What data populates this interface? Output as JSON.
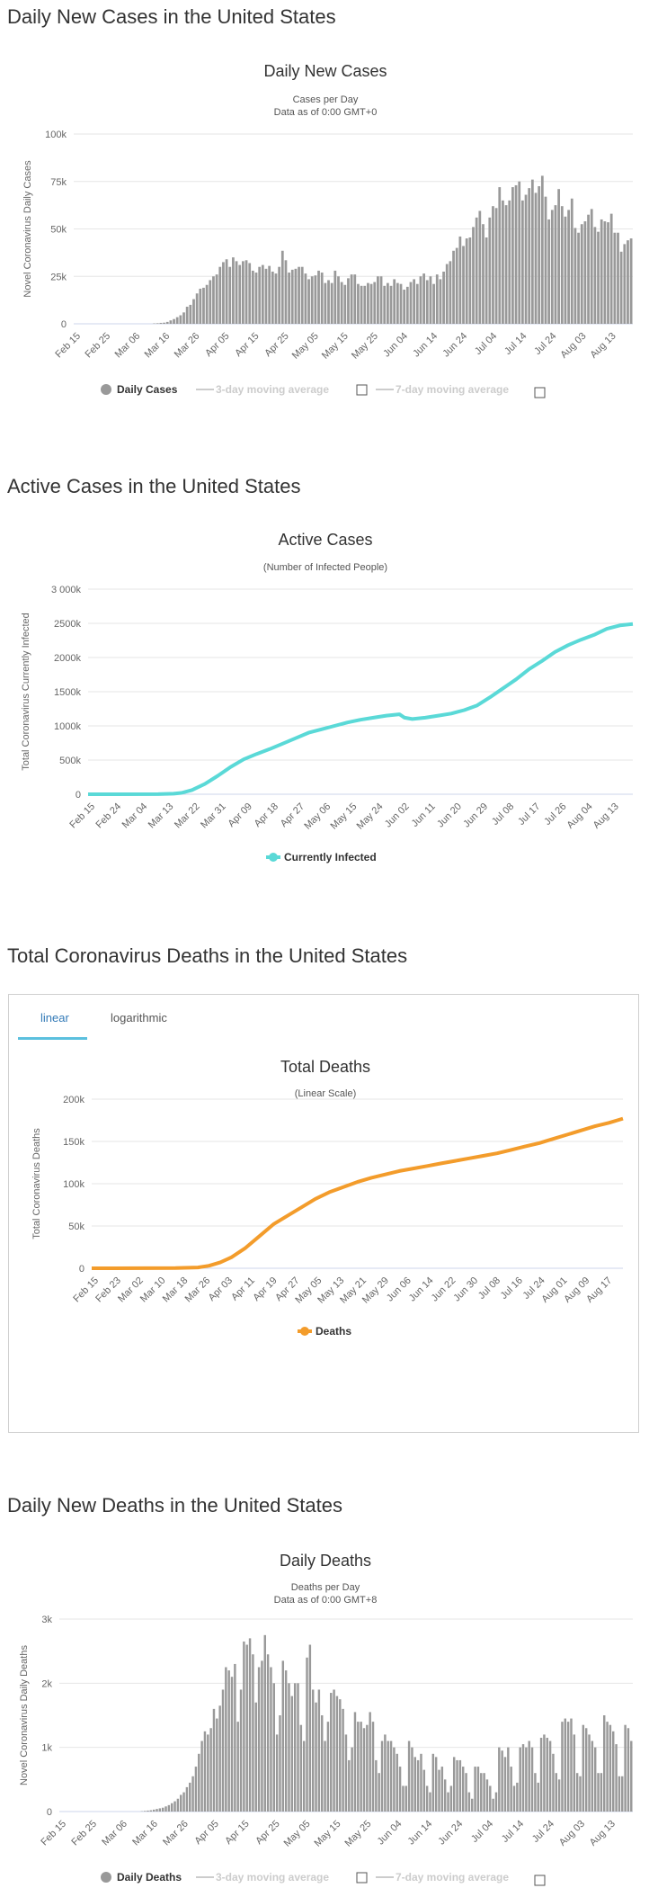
{
  "sections": {
    "daily_cases_title": "Daily New Cases in the United States",
    "active_title": "Active Cases in the United States",
    "deaths_title": "Total Coronavirus Deaths in the United States",
    "daily_deaths_title": "Daily New Deaths in the United States"
  },
  "tabs": {
    "linear": "linear",
    "log": "logarithmic"
  },
  "legends": {
    "daily_cases": "Daily Cases",
    "ma3": "3-day moving average",
    "ma7": "7-day moving average",
    "active": "Currently Infected",
    "deaths": "Deaths",
    "daily_deaths": "Daily Deaths"
  },
  "colors": {
    "bar": "#999999",
    "active": "#5ad9d7",
    "deaths": "#f39c2b",
    "tab_active": "#337ab7",
    "tab_underline": "#5bc0de"
  },
  "chart_data": [
    {
      "type": "bar",
      "title": "Daily New Cases",
      "subtitle": [
        "Cases per Day",
        "Data as of 0:00 GMT+0"
      ],
      "ylabel": "Novel Coronavirus Daily Cases",
      "ylim": [
        0,
        100000
      ],
      "yticks": [
        0,
        25000,
        50000,
        75000,
        100000
      ],
      "ytick_labels": [
        "0",
        "25k",
        "50k",
        "75k",
        "100k"
      ],
      "xtick_labels": [
        "Feb 15",
        "Feb 25",
        "Mar 06",
        "Mar 16",
        "Mar 26",
        "Apr 05",
        "Apr 15",
        "Apr 25",
        "May 05",
        "May 15",
        "May 25",
        "Jun 04",
        "Jun 14",
        "Jun 24",
        "Jul 04",
        "Jul 14",
        "Jul 24",
        "Aug 03",
        "Aug 13"
      ],
      "x_start": "2020-02-15",
      "values": [
        0,
        0,
        0,
        0,
        0,
        0,
        0,
        0,
        0,
        0,
        0,
        0,
        0,
        0,
        0,
        0,
        0,
        0,
        0,
        0,
        0,
        0,
        0,
        0,
        200,
        300,
        500,
        600,
        1000,
        1800,
        2500,
        3500,
        4500,
        6000,
        9000,
        10000,
        13000,
        16000,
        18500,
        19000,
        20500,
        23000,
        25000,
        26000,
        30000,
        32500,
        34000,
        30000,
        35000,
        33000,
        31000,
        33000,
        33500,
        32000,
        28000,
        27000,
        30000,
        31000,
        29000,
        30500,
        27500,
        26500,
        30000,
        38500,
        33500,
        27000,
        28500,
        29000,
        30000,
        30000,
        26500,
        23500,
        25000,
        25500,
        28000,
        27000,
        21500,
        23000,
        21500,
        28000,
        25000,
        22000,
        20500,
        24000,
        26000,
        26000,
        21000,
        20000,
        20000,
        21500,
        21000,
        22000,
        25000,
        25000,
        20000,
        21500,
        20000,
        23500,
        21500,
        21000,
        18000,
        19500,
        22000,
        23500,
        21000,
        25000,
        26500,
        23000,
        25000,
        21000,
        26000,
        23500,
        27500,
        31500,
        33000,
        38500,
        40000,
        46000,
        41000,
        45000,
        45500,
        51000,
        56000,
        59500,
        52500,
        45500,
        56000,
        62000,
        61000,
        72000,
        65000,
        62500,
        65000,
        72000,
        73000,
        75000,
        65000,
        68000,
        71500,
        76000,
        69000,
        72500,
        78000,
        67000,
        55000,
        60000,
        62500,
        71000,
        62000,
        56500,
        60000,
        66000,
        50500,
        48000,
        52500,
        54000,
        57500,
        60500,
        51000,
        48500,
        55000,
        54000,
        53500,
        58000,
        48000,
        48000,
        38000,
        42000,
        44000,
        45000
      ]
    },
    {
      "type": "line",
      "title": "Active Cases",
      "subtitle": [
        "(Number of Infected People)"
      ],
      "ylabel": "Total Coronavirus Currently Infected",
      "ylim": [
        0,
        3000000
      ],
      "yticks": [
        0,
        500000,
        1000000,
        1500000,
        2000000,
        2500000,
        3000000
      ],
      "ytick_labels": [
        "0",
        "500k",
        "1000k",
        "1500k",
        "2000k",
        "2500k",
        "3 000k"
      ],
      "xtick_labels": [
        "Feb 15",
        "Feb 24",
        "Mar 04",
        "Mar 13",
        "Mar 22",
        "Mar 31",
        "Apr 09",
        "Apr 18",
        "Apr 27",
        "May 06",
        "May 15",
        "May 24",
        "Jun 02",
        "Jun 11",
        "Jun 20",
        "Jun 29",
        "Jul 08",
        "Jul 17",
        "Jul 26",
        "Aug 04",
        "Aug 13"
      ],
      "x_start": "2020-02-15",
      "series": [
        {
          "name": "Currently Infected",
          "points": [
            [
              0,
              0
            ],
            [
              27,
              1000
            ],
            [
              33,
              8000
            ],
            [
              36,
              20000
            ],
            [
              40,
              60000
            ],
            [
              45,
              150000
            ],
            [
              50,
              270000
            ],
            [
              55,
              400000
            ],
            [
              60,
              510000
            ],
            [
              65,
              590000
            ],
            [
              70,
              660000
            ],
            [
              75,
              740000
            ],
            [
              80,
              820000
            ],
            [
              85,
              900000
            ],
            [
              90,
              950000
            ],
            [
              95,
              1000000
            ],
            [
              100,
              1050000
            ],
            [
              105,
              1090000
            ],
            [
              110,
              1120000
            ],
            [
              115,
              1150000
            ],
            [
              120,
              1170000
            ],
            [
              122,
              1120000
            ],
            [
              125,
              1100000
            ],
            [
              130,
              1120000
            ],
            [
              135,
              1150000
            ],
            [
              140,
              1180000
            ],
            [
              145,
              1230000
            ],
            [
              150,
              1300000
            ],
            [
              155,
              1420000
            ],
            [
              160,
              1550000
            ],
            [
              165,
              1680000
            ],
            [
              170,
              1830000
            ],
            [
              175,
              1950000
            ],
            [
              180,
              2080000
            ],
            [
              185,
              2180000
            ],
            [
              190,
              2260000
            ],
            [
              195,
              2330000
            ],
            [
              200,
              2420000
            ],
            [
              205,
              2470000
            ],
            [
              210,
              2490000
            ]
          ]
        }
      ]
    },
    {
      "type": "line",
      "title": "Total Deaths",
      "subtitle": [
        "(Linear Scale)"
      ],
      "ylabel": "Total Coronavirus Deaths",
      "ylim": [
        0,
        200000
      ],
      "yticks": [
        0,
        50000,
        100000,
        150000,
        200000
      ],
      "ytick_labels": [
        "0",
        "50k",
        "100k",
        "150k",
        "200k"
      ],
      "xtick_labels": [
        "Feb 15",
        "Feb 23",
        "Mar 02",
        "Mar 10",
        "Mar 18",
        "Mar 26",
        "Apr 03",
        "Apr 11",
        "Apr 19",
        "Apr 27",
        "May 05",
        "May 13",
        "May 21",
        "May 29",
        "Jun 06",
        "Jun 14",
        "Jun 22",
        "Jun 30",
        "Jul 08",
        "Jul 16",
        "Jul 24",
        "Aug 01",
        "Aug 09",
        "Aug 17"
      ],
      "x_start": "2020-02-15",
      "series": [
        {
          "name": "Deaths",
          "points": [
            [
              0,
              0
            ],
            [
              30,
              200
            ],
            [
              38,
              1000
            ],
            [
              42,
              3000
            ],
            [
              46,
              7000
            ],
            [
              50,
              13000
            ],
            [
              55,
              24000
            ],
            [
              60,
              38000
            ],
            [
              65,
              52000
            ],
            [
              70,
              62000
            ],
            [
              75,
              72000
            ],
            [
              80,
              82000
            ],
            [
              85,
              90000
            ],
            [
              90,
              96000
            ],
            [
              95,
              102000
            ],
            [
              100,
              107000
            ],
            [
              105,
              111000
            ],
            [
              110,
              115000
            ],
            [
              115,
              118000
            ],
            [
              120,
              121000
            ],
            [
              125,
              124000
            ],
            [
              130,
              127000
            ],
            [
              135,
              130000
            ],
            [
              140,
              133000
            ],
            [
              145,
              136000
            ],
            [
              150,
              140000
            ],
            [
              155,
              144000
            ],
            [
              160,
              148000
            ],
            [
              165,
              153000
            ],
            [
              170,
              158000
            ],
            [
              175,
              163000
            ],
            [
              180,
              168000
            ],
            [
              185,
              172000
            ],
            [
              188,
              175000
            ],
            [
              190,
              177000
            ]
          ]
        }
      ]
    },
    {
      "type": "bar",
      "title": "Daily Deaths",
      "subtitle": [
        "Deaths per Day",
        "Data as of 0:00 GMT+8"
      ],
      "ylabel": "Novel Coronavirus Daily Deaths",
      "ylim": [
        0,
        3000
      ],
      "yticks": [
        0,
        1000,
        2000,
        3000
      ],
      "ytick_labels": [
        "0",
        "1k",
        "2k",
        "3k"
      ],
      "xtick_labels": [
        "Feb 15",
        "Feb 25",
        "Mar 06",
        "Mar 16",
        "Mar 26",
        "Apr 05",
        "Apr 15",
        "Apr 25",
        "May 05",
        "May 15",
        "May 25",
        "Jun 04",
        "Jun 14",
        "Jun 24",
        "Jul 04",
        "Jul 14",
        "Jul 24",
        "Aug 03",
        "Aug 13"
      ],
      "x_start": "2020-02-15",
      "values": [
        0,
        0,
        0,
        0,
        0,
        0,
        0,
        0,
        0,
        0,
        0,
        0,
        0,
        0,
        0,
        0,
        0,
        0,
        0,
        0,
        0,
        0,
        0,
        0,
        0,
        0,
        0,
        5,
        10,
        15,
        20,
        30,
        40,
        50,
        60,
        80,
        100,
        130,
        160,
        200,
        260,
        300,
        380,
        450,
        550,
        700,
        900,
        1100,
        1250,
        1200,
        1300,
        1600,
        1450,
        1650,
        1900,
        2250,
        2200,
        2100,
        2300,
        1400,
        1900,
        2650,
        2600,
        2700,
        2450,
        1700,
        2250,
        2350,
        2750,
        2450,
        2250,
        2000,
        1200,
        1500,
        2350,
        2200,
        2000,
        1800,
        2000,
        2000,
        1350,
        1100,
        2400,
        2600,
        1900,
        1700,
        1900,
        1500,
        1100,
        1400,
        1850,
        1900,
        1800,
        1750,
        1600,
        1200,
        800,
        1000,
        1550,
        1400,
        1400,
        1300,
        1350,
        1550,
        1400,
        800,
        600,
        1100,
        1200,
        1100,
        1100,
        1000,
        900,
        700,
        400,
        400,
        1100,
        1000,
        850,
        800,
        900,
        650,
        400,
        300,
        900,
        850,
        650,
        700,
        500,
        300,
        400,
        850,
        800,
        800,
        700,
        600,
        300,
        200,
        700,
        700,
        600,
        600,
        500,
        400,
        200,
        300,
        1000,
        950,
        850,
        1000,
        700,
        400,
        450,
        1000,
        1050,
        1000,
        1100,
        1000,
        600,
        450,
        1150,
        1200,
        1150,
        1100,
        900,
        600,
        500,
        1400,
        1450,
        1400,
        1450,
        1200,
        600,
        550,
        1350,
        1300,
        1200,
        1100,
        1000,
        600,
        600,
        1500,
        1400,
        1350,
        1250,
        1050,
        550,
        550,
        1350,
        1300,
        1100
      ]
    }
  ]
}
